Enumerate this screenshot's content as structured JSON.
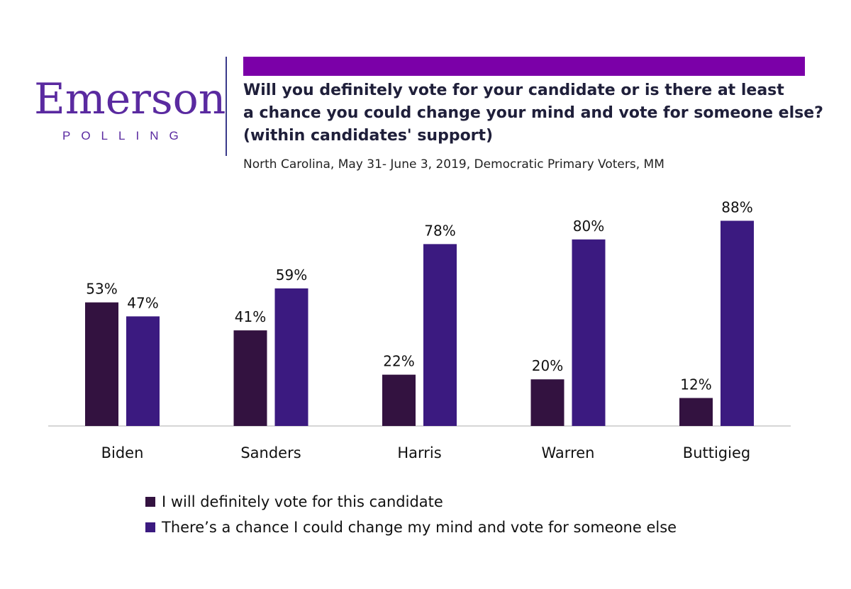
{
  "logo": {
    "word": "Emerson",
    "sub": "POLLING"
  },
  "title_lines": [
    "Will you definitely vote for your candidate or is there at least",
    "a chance you could change your mind and vote for someone else?",
    "(within candidates' support)"
  ],
  "subtitle": "North Carolina, May 31- June 3, 2019, Democratic Primary Voters, MM",
  "colors": {
    "series1": "#331240",
    "series2": "#3b1a80",
    "bar_accent": "#7b00a8",
    "logo": "#5a2aa0"
  },
  "chart_data": {
    "type": "bar",
    "categories": [
      "Biden",
      "Sanders",
      "Harris",
      "Warren",
      "Buttigieg"
    ],
    "series": [
      {
        "name": "I will definitely vote for this candidate",
        "values": [
          53,
          41,
          22,
          20,
          12
        ],
        "labels": [
          "53%",
          "41%",
          "22%",
          "20%",
          "12%"
        ]
      },
      {
        "name": "There’s a chance I could change my mind and vote for someone else",
        "values": [
          47,
          59,
          78,
          80,
          88
        ],
        "labels": [
          "47%",
          "59%",
          "78%",
          "80%",
          "88%"
        ]
      }
    ],
    "ylim": [
      0,
      100
    ],
    "grid": false,
    "legend": "bottom-left"
  }
}
